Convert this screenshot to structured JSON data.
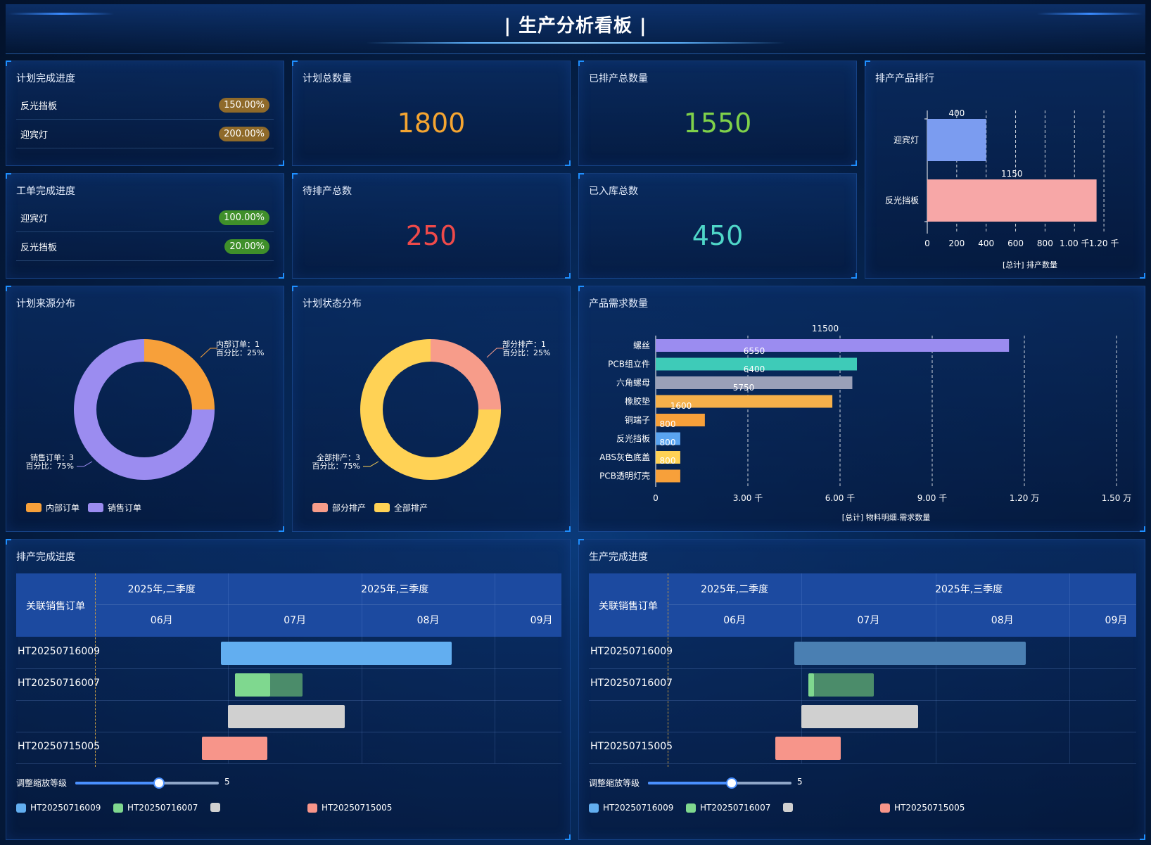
{
  "header": {
    "title": "| 生产分析看板 |"
  },
  "plan_progress": {
    "title": "计划完成进度",
    "items": [
      {
        "label": "反光挡板",
        "value": "150.00%"
      },
      {
        "label": "迎宾灯",
        "value": "200.00%"
      }
    ]
  },
  "plan_total": {
    "title": "计划总数量",
    "value": "1800"
  },
  "scheduled_total": {
    "title": "已排产总数量",
    "value": "1550"
  },
  "workorder_progress": {
    "title": "工单完成进度",
    "items": [
      {
        "label": "迎宾灯",
        "value": "100.00%"
      },
      {
        "label": "反光挡板",
        "value": "20.00%"
      }
    ]
  },
  "pending_total": {
    "title": "待排产总数",
    "value": "250"
  },
  "stocked_total": {
    "title": "已入库总数",
    "value": "450"
  },
  "colors": {
    "orange_num": "#f5a531",
    "green_num": "#7fd14a",
    "red_num": "#ef4a4a",
    "teal_num": "#4fd6c8"
  },
  "rank_chart": {
    "title": "排产产品排行",
    "chart_data": {
      "type": "bar",
      "orientation": "horizontal",
      "categories": [
        "迎宾灯",
        "反光挡板"
      ],
      "values": [
        400,
        1150
      ],
      "colors": [
        "#7b9cf0",
        "#f7a7a7"
      ],
      "xlim": [
        0,
        1300
      ],
      "xticks": [
        "0",
        "200",
        "400",
        "600",
        "800",
        "1.00 千",
        "1.20 千"
      ],
      "xlabel": "[总计] 排产数量",
      "grid": "dashed"
    }
  },
  "source_dist": {
    "title": "计划来源分布",
    "chart_data": {
      "type": "pie",
      "labels": [
        "内部订单",
        "销售订单"
      ],
      "values": [
        1,
        3
      ],
      "colors": [
        "#f7a03a",
        "#9b8cf0"
      ],
      "annotations": [
        {
          "line1": "内部订单：1",
          "line2": "百分比：25%"
        },
        {
          "line1": "销售订单：3",
          "line2": "百分比：75%"
        }
      ]
    },
    "legend": [
      "内部订单",
      "销售订单"
    ]
  },
  "status_dist": {
    "title": "计划状态分布",
    "chart_data": {
      "type": "pie",
      "labels": [
        "部分排产",
        "全部排产"
      ],
      "values": [
        1,
        3
      ],
      "colors": [
        "#f79c8a",
        "#ffd255"
      ],
      "annotations": [
        {
          "line1": "部分排产：1",
          "line2": "百分比：25%"
        },
        {
          "line1": "全部排产：3",
          "line2": "百分比：75%"
        }
      ]
    },
    "legend": [
      "部分排产",
      "全部排产"
    ]
  },
  "demand_chart": {
    "title": "产品需求数量",
    "chart_data": {
      "type": "bar",
      "orientation": "horizontal",
      "categories": [
        "螺丝",
        "PCB组立件",
        "六角螺母",
        "橡胶垫",
        "铜端子",
        "反光挡板",
        "ABS灰色底盖",
        "PCB透明灯壳"
      ],
      "values": [
        11500,
        6550,
        6400,
        5750,
        1600,
        800,
        800,
        800
      ],
      "labels": [
        "11500",
        "6550",
        "6400",
        "5750",
        "1600",
        "800",
        "800",
        "800"
      ],
      "colors": [
        "#9b8cf0",
        "#3ecbb8",
        "#9aa0b8",
        "#f5b04a",
        "#f7a03a",
        "#5aa4f0",
        "#ffd255",
        "#f7a03a"
      ],
      "xlim": [
        0,
        15000
      ],
      "xticks": [
        "0",
        "3.00 千",
        "6.00 千",
        "9.00 千",
        "1.20 万",
        "1.50 万"
      ],
      "xlabel": "[总计] 物料明细.需求数量",
      "grid": "dashed"
    }
  },
  "gantt_left": {
    "title": "排产完成进度",
    "corner": "关联销售订单",
    "quarters": [
      "2025年,二季度",
      "2025年,三季度"
    ],
    "months": [
      "06月",
      "07月",
      "08月",
      "09月"
    ],
    "rows": [
      "HT20250716009",
      "HT20250716007",
      "",
      "HT20250715005"
    ],
    "slider_label": "调整缩放等级",
    "slider_value": "5",
    "slider_fraction": 0.58,
    "legend": [
      "HT20250716009",
      "HT20250716007",
      "",
      "HT20250715005"
    ],
    "legend_colors": [
      "#62aef0",
      "#7fd88f",
      "#d0d0d0",
      "#f7958a"
    ]
  },
  "gantt_right": {
    "title": "生产完成进度",
    "corner": "关联销售订单",
    "quarters": [
      "2025年,二季度",
      "2025年,三季度"
    ],
    "months": [
      "06月",
      "07月",
      "08月",
      "09月"
    ],
    "rows": [
      "HT20250716009",
      "HT20250716007",
      "",
      "HT20250715005"
    ],
    "slider_label": "调整缩放等级",
    "slider_value": "5",
    "slider_fraction": 0.58,
    "legend": [
      "HT20250716009",
      "HT20250716007",
      "",
      "HT20250715005"
    ],
    "legend_colors": [
      "#62aef0",
      "#7fd88f",
      "#d0d0d0",
      "#f7958a"
    ]
  }
}
